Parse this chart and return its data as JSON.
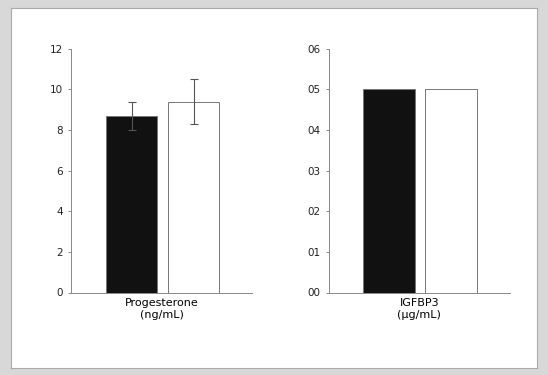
{
  "prog_black_mean": 8.7,
  "prog_black_err": 0.7,
  "prog_white_mean": 9.4,
  "prog_white_err": 1.1,
  "prog_ylim": [
    0,
    12
  ],
  "prog_yticks": [
    0,
    2,
    4,
    6,
    8,
    10,
    12
  ],
  "prog_xlabel": "Progesterone\n(ng/mL)",
  "igf_black_mean": 0.05,
  "igf_black_err": 0.0,
  "igf_white_mean": 0.05,
  "igf_white_err": 0.0,
  "igf_ylim": [
    0.0,
    0.06
  ],
  "igf_yticks": [
    0.0,
    0.01,
    0.02,
    0.03,
    0.04,
    0.05,
    0.06
  ],
  "igf_yticklabels": [
    "00",
    "01",
    "02",
    "03",
    "04",
    "05",
    "06"
  ],
  "igf_xlabel": "IGFBP3\n(μg/mL)",
  "bar_width": 0.3,
  "black_color": "#111111",
  "white_color": "#ffffff",
  "edge_color": "#777777",
  "bg_color": "#ffffff",
  "fig_bg_color": "#d8d8d8",
  "font_size": 8,
  "tick_label_size": 7.5
}
